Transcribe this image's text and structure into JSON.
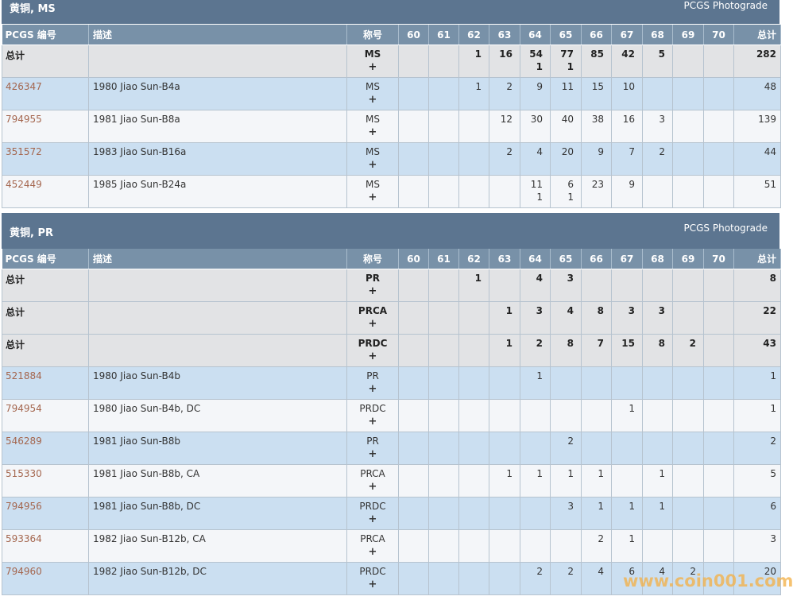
{
  "columns": {
    "id": "PCGS 编号",
    "desc": "描述",
    "designation": "称号",
    "grades": [
      "60",
      "61",
      "62",
      "63",
      "64",
      "65",
      "66",
      "67",
      "68",
      "69",
      "70"
    ],
    "total": "总计"
  },
  "plus_symbol": "+",
  "watermark": "www.coin001.com",
  "colors": {
    "header_bar": "#5c7590",
    "column_header": "#7891a8",
    "row_alt_blue": "#cbdff1",
    "row_light": "#f4f6f9",
    "row_total": "#e2e3e5",
    "link": "#a4664e",
    "watermark": "#f3b24a"
  },
  "sections": [
    {
      "title": "黄铜, MS",
      "photograde": "PCGS Photograde",
      "rows": [
        {
          "type": "total",
          "id": "总计",
          "desc": "",
          "designation": "MS",
          "grades": [
            [
              "",
              ""
            ],
            [
              "",
              ""
            ],
            [
              "1",
              ""
            ],
            [
              "16",
              ""
            ],
            [
              "54",
              "1"
            ],
            [
              "77",
              "1"
            ],
            [
              "85",
              ""
            ],
            [
              "42",
              ""
            ],
            [
              "5",
              ""
            ],
            [
              "",
              ""
            ],
            [
              "",
              ""
            ]
          ],
          "total": "282"
        },
        {
          "type": "item",
          "id": "426347",
          "desc": "1980 Jiao Sun-B4a",
          "designation": "MS",
          "grades": [
            [
              "",
              ""
            ],
            [
              "",
              ""
            ],
            [
              "1",
              ""
            ],
            [
              "2",
              ""
            ],
            [
              "9",
              ""
            ],
            [
              "11",
              ""
            ],
            [
              "15",
              ""
            ],
            [
              "10",
              ""
            ],
            [
              "",
              ""
            ],
            [
              "",
              ""
            ],
            [
              "",
              ""
            ]
          ],
          "total": "48"
        },
        {
          "type": "item",
          "id": "794955",
          "desc": "1981 Jiao Sun-B8a",
          "designation": "MS",
          "grades": [
            [
              "",
              ""
            ],
            [
              "",
              ""
            ],
            [
              "",
              ""
            ],
            [
              "12",
              ""
            ],
            [
              "30",
              ""
            ],
            [
              "40",
              ""
            ],
            [
              "38",
              ""
            ],
            [
              "16",
              ""
            ],
            [
              "3",
              ""
            ],
            [
              "",
              ""
            ],
            [
              "",
              ""
            ]
          ],
          "total": "139"
        },
        {
          "type": "item",
          "id": "351572",
          "desc": "1983 Jiao Sun-B16a",
          "designation": "MS",
          "grades": [
            [
              "",
              ""
            ],
            [
              "",
              ""
            ],
            [
              "",
              ""
            ],
            [
              "2",
              ""
            ],
            [
              "4",
              ""
            ],
            [
              "20",
              ""
            ],
            [
              "9",
              ""
            ],
            [
              "7",
              ""
            ],
            [
              "2",
              ""
            ],
            [
              "",
              ""
            ],
            [
              "",
              ""
            ]
          ],
          "total": "44"
        },
        {
          "type": "item",
          "id": "452449",
          "desc": "1985 Jiao Sun-B24a",
          "designation": "MS",
          "grades": [
            [
              "",
              ""
            ],
            [
              "",
              ""
            ],
            [
              "",
              ""
            ],
            [
              "",
              ""
            ],
            [
              "11",
              "1"
            ],
            [
              "6",
              "1"
            ],
            [
              "23",
              ""
            ],
            [
              "9",
              ""
            ],
            [
              "",
              ""
            ],
            [
              "",
              ""
            ],
            [
              "",
              ""
            ]
          ],
          "total": "51"
        }
      ]
    },
    {
      "title": "黄铜, PR",
      "photograde": "PCGS Photograde",
      "rows": [
        {
          "type": "total",
          "id": "总计",
          "desc": "",
          "designation": "PR",
          "grades": [
            [
              "",
              ""
            ],
            [
              "",
              ""
            ],
            [
              "1",
              ""
            ],
            [
              "",
              ""
            ],
            [
              "4",
              ""
            ],
            [
              "3",
              ""
            ],
            [
              "",
              ""
            ],
            [
              "",
              ""
            ],
            [
              "",
              ""
            ],
            [
              "",
              ""
            ],
            [
              "",
              ""
            ]
          ],
          "total": "8"
        },
        {
          "type": "total",
          "id": "总计",
          "desc": "",
          "designation": "PRCA",
          "grades": [
            [
              "",
              ""
            ],
            [
              "",
              ""
            ],
            [
              "",
              ""
            ],
            [
              "1",
              ""
            ],
            [
              "3",
              ""
            ],
            [
              "4",
              ""
            ],
            [
              "8",
              ""
            ],
            [
              "3",
              ""
            ],
            [
              "3",
              ""
            ],
            [
              "",
              ""
            ],
            [
              "",
              ""
            ]
          ],
          "total": "22"
        },
        {
          "type": "total",
          "id": "总计",
          "desc": "",
          "designation": "PRDC",
          "grades": [
            [
              "",
              ""
            ],
            [
              "",
              ""
            ],
            [
              "",
              ""
            ],
            [
              "1",
              ""
            ],
            [
              "2",
              ""
            ],
            [
              "8",
              ""
            ],
            [
              "7",
              ""
            ],
            [
              "15",
              ""
            ],
            [
              "8",
              ""
            ],
            [
              "2",
              ""
            ],
            [
              "",
              ""
            ]
          ],
          "total": "43"
        },
        {
          "type": "item",
          "id": "521884",
          "desc": "1980 Jiao Sun-B4b",
          "designation": "PR",
          "grades": [
            [
              "",
              ""
            ],
            [
              "",
              ""
            ],
            [
              "",
              ""
            ],
            [
              "",
              ""
            ],
            [
              "1",
              ""
            ],
            [
              "",
              ""
            ],
            [
              "",
              ""
            ],
            [
              "",
              ""
            ],
            [
              "",
              ""
            ],
            [
              "",
              ""
            ],
            [
              "",
              ""
            ]
          ],
          "total": "1"
        },
        {
          "type": "item",
          "id": "794954",
          "desc": "1980 Jiao Sun-B4b, DC",
          "designation": "PRDC",
          "grades": [
            [
              "",
              ""
            ],
            [
              "",
              ""
            ],
            [
              "",
              ""
            ],
            [
              "",
              ""
            ],
            [
              "",
              ""
            ],
            [
              "",
              ""
            ],
            [
              "",
              ""
            ],
            [
              "1",
              ""
            ],
            [
              "",
              ""
            ],
            [
              "",
              ""
            ],
            [
              "",
              ""
            ]
          ],
          "total": "1"
        },
        {
          "type": "item",
          "id": "546289",
          "desc": "1981 Jiao Sun-B8b",
          "designation": "PR",
          "grades": [
            [
              "",
              ""
            ],
            [
              "",
              ""
            ],
            [
              "",
              ""
            ],
            [
              "",
              ""
            ],
            [
              "",
              ""
            ],
            [
              "2",
              ""
            ],
            [
              "",
              ""
            ],
            [
              "",
              ""
            ],
            [
              "",
              ""
            ],
            [
              "",
              ""
            ],
            [
              "",
              ""
            ]
          ],
          "total": "2"
        },
        {
          "type": "item",
          "id": "515330",
          "desc": "1981 Jiao Sun-B8b, CA",
          "designation": "PRCA",
          "grades": [
            [
              "",
              ""
            ],
            [
              "",
              ""
            ],
            [
              "",
              ""
            ],
            [
              "1",
              ""
            ],
            [
              "1",
              ""
            ],
            [
              "1",
              ""
            ],
            [
              "1",
              ""
            ],
            [
              "",
              ""
            ],
            [
              "1",
              ""
            ],
            [
              "",
              ""
            ],
            [
              "",
              ""
            ]
          ],
          "total": "5"
        },
        {
          "type": "item",
          "id": "794956",
          "desc": "1981 Jiao Sun-B8b, DC",
          "designation": "PRDC",
          "grades": [
            [
              "",
              ""
            ],
            [
              "",
              ""
            ],
            [
              "",
              ""
            ],
            [
              "",
              ""
            ],
            [
              "",
              ""
            ],
            [
              "3",
              ""
            ],
            [
              "1",
              ""
            ],
            [
              "1",
              ""
            ],
            [
              "1",
              ""
            ],
            [
              "",
              ""
            ],
            [
              "",
              ""
            ]
          ],
          "total": "6"
        },
        {
          "type": "item",
          "id": "593364",
          "desc": "1982 Jiao Sun-B12b, CA",
          "designation": "PRCA",
          "grades": [
            [
              "",
              ""
            ],
            [
              "",
              ""
            ],
            [
              "",
              ""
            ],
            [
              "",
              ""
            ],
            [
              "",
              ""
            ],
            [
              "",
              ""
            ],
            [
              "2",
              ""
            ],
            [
              "1",
              ""
            ],
            [
              "",
              ""
            ],
            [
              "",
              ""
            ],
            [
              "",
              ""
            ]
          ],
          "total": "3"
        },
        {
          "type": "item",
          "id": "794960",
          "desc": "1982 Jiao Sun-B12b, DC",
          "designation": "PRDC",
          "grades": [
            [
              "",
              ""
            ],
            [
              "",
              ""
            ],
            [
              "",
              ""
            ],
            [
              "",
              ""
            ],
            [
              "2",
              ""
            ],
            [
              "2",
              ""
            ],
            [
              "4",
              ""
            ],
            [
              "6",
              ""
            ],
            [
              "4",
              ""
            ],
            [
              "2",
              ""
            ],
            [
              "",
              ""
            ]
          ],
          "total": "20"
        }
      ]
    }
  ]
}
